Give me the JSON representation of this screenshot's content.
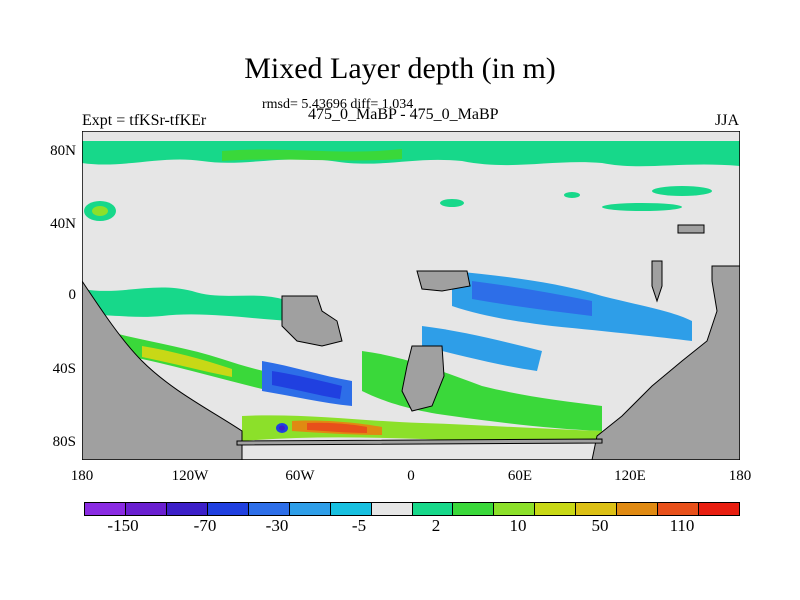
{
  "title": "Mixed Layer depth (in m)",
  "stats": "rmsd= 5.43696 diff= 1.034",
  "subtitle": "475_0_MaBP - 475_0_MaBP",
  "left_label": "Expt = tfKSr-tfKEr",
  "right_label": "JJA",
  "lat_ticks": [
    "80N",
    "40N",
    "0",
    "40S",
    "80S"
  ],
  "lon_ticks": [
    "180",
    "120W",
    "60W",
    "0",
    "60E",
    "120E",
    "180"
  ],
  "colorbar": {
    "colors": [
      "#8a2be2",
      "#6a1fd0",
      "#3c1fc8",
      "#2040e0",
      "#2d6ee8",
      "#2e9ee8",
      "#18c0e0",
      "#e6e6e6",
      "#17d88a",
      "#3ad83a",
      "#8ce02a",
      "#c8d816",
      "#dcc015",
      "#e08a12",
      "#e8501a",
      "#e81e10"
    ],
    "labels": [
      "-150",
      "-70",
      "-30",
      "-5",
      "2",
      "10",
      "50",
      "110"
    ]
  },
  "colors": {
    "ocean_neutral": "#e6e6e6",
    "land": "#a0a0a0",
    "positive_small": "#17d88a",
    "positive_mid": "#3ad83a",
    "negative_small": "#2e9ee8",
    "negative_mid": "#2d6ee8"
  }
}
